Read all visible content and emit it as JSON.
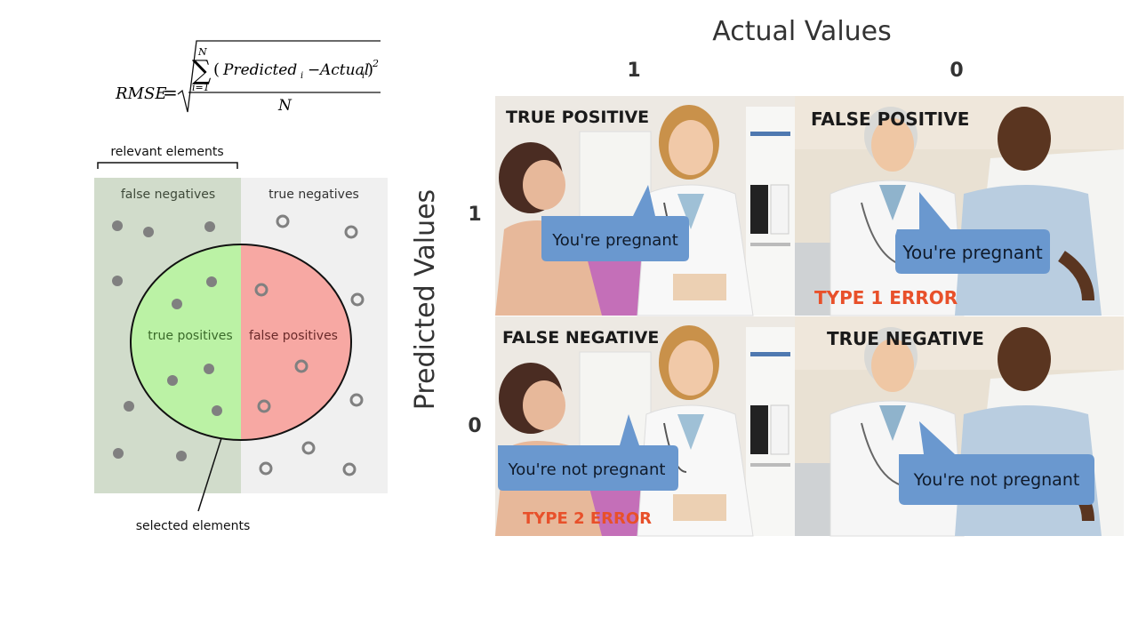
{
  "formula": {
    "lhs": "RMSE",
    "equals": "=",
    "sum_upper": "N",
    "sum_lower": "i=1",
    "sum_symbol": "∑",
    "open_paren": "(",
    "predicted": "Predicted",
    "sub_i": "i",
    "minus": "−",
    "actual": "Actual",
    "close_paren": ")",
    "power": "2",
    "denominator": "N"
  },
  "venn": {
    "relevant_label": "relevant elements",
    "selected_label": "selected elements",
    "false_negatives": "false negatives",
    "true_negatives": "true negatives",
    "true_positives": "true positives",
    "false_positives": "false positives",
    "colors": {
      "relevant_bg": "#d1dccb",
      "irrelevant_bg": "#f0f0f0",
      "tp_fill": "#bbf2a5",
      "fp_fill": "#f7a8a3",
      "dot": "#808080"
    }
  },
  "matrix": {
    "title": "Actual Values",
    "y_title": "Predicted Values",
    "col_1": "1",
    "col_0": "0",
    "row_1": "1",
    "row_0": "0",
    "cells": {
      "tp": {
        "label": "TRUE POSITIVE",
        "speech": "You're pregnant"
      },
      "fp": {
        "label": "FALSE POSITIVE",
        "speech": "You're pregnant",
        "error": "TYPE 1 ERROR"
      },
      "fn": {
        "label": "FALSE NEGATIVE",
        "speech": "You're not pregnant",
        "error": "TYPE 2 ERROR"
      },
      "tn": {
        "label": "TRUE NEGATIVE",
        "speech": "You're not pregnant"
      }
    },
    "colors": {
      "bubble": "#6a98cf",
      "error": "#e8502a"
    }
  }
}
